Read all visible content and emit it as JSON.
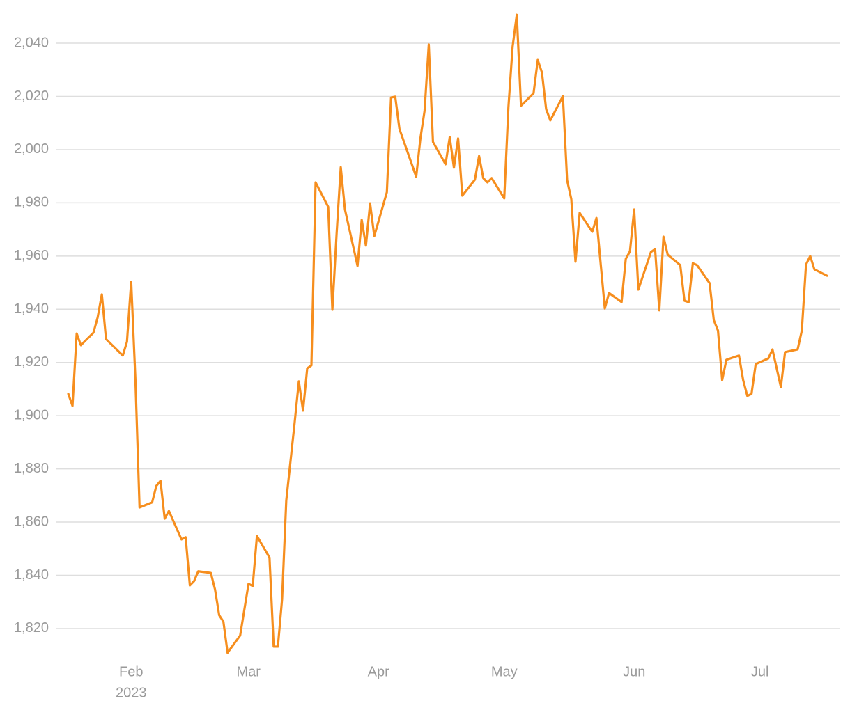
{
  "chart_data": {
    "type": "line",
    "x": [
      "2023-01-17",
      "2023-01-18",
      "2023-01-19",
      "2023-01-20",
      "2023-01-23",
      "2023-01-24",
      "2023-01-25",
      "2023-01-26",
      "2023-01-30",
      "2023-01-31",
      "2023-02-01",
      "2023-02-02",
      "2023-02-03",
      "2023-02-06",
      "2023-02-07",
      "2023-02-08",
      "2023-02-09",
      "2023-02-10",
      "2023-02-13",
      "2023-02-14",
      "2023-02-15",
      "2023-02-16",
      "2023-02-17",
      "2023-02-20",
      "2023-02-21",
      "2023-02-22",
      "2023-02-23",
      "2023-02-24",
      "2023-02-27",
      "2023-03-01",
      "2023-03-02",
      "2023-03-03",
      "2023-03-06",
      "2023-03-07",
      "2023-03-08",
      "2023-03-09",
      "2023-03-10",
      "2023-03-12",
      "2023-03-13",
      "2023-03-14",
      "2023-03-15",
      "2023-03-16",
      "2023-03-17",
      "2023-03-20",
      "2023-03-21",
      "2023-03-22",
      "2023-03-23",
      "2023-03-24",
      "2023-03-27",
      "2023-03-28",
      "2023-03-29",
      "2023-03-30",
      "2023-03-31",
      "2023-04-03",
      "2023-04-04",
      "2023-04-05",
      "2023-04-06",
      "2023-04-10",
      "2023-04-11",
      "2023-04-12",
      "2023-04-13",
      "2023-04-14",
      "2023-04-17",
      "2023-04-18",
      "2023-04-19",
      "2023-04-20",
      "2023-04-21",
      "2023-04-24",
      "2023-04-25",
      "2023-04-26",
      "2023-04-27",
      "2023-04-28",
      "2023-05-01",
      "2023-05-02",
      "2023-05-03",
      "2023-05-04",
      "2023-05-05",
      "2023-05-08",
      "2023-05-09",
      "2023-05-10",
      "2023-05-11",
      "2023-05-12",
      "2023-05-15",
      "2023-05-16",
      "2023-05-17",
      "2023-05-18",
      "2023-05-19",
      "2023-05-22",
      "2023-05-23",
      "2023-05-25",
      "2023-05-26",
      "2023-05-29",
      "2023-05-30",
      "2023-05-31",
      "2023-06-01",
      "2023-06-02",
      "2023-06-05",
      "2023-06-06",
      "2023-06-07",
      "2023-06-08",
      "2023-06-09",
      "2023-06-12",
      "2023-06-13",
      "2023-06-14",
      "2023-06-15",
      "2023-06-16",
      "2023-06-19",
      "2023-06-20",
      "2023-06-21",
      "2023-06-22",
      "2023-06-23",
      "2023-06-26",
      "2023-06-27",
      "2023-06-28",
      "2023-06-29",
      "2023-06-30",
      "2023-07-03",
      "2023-07-04",
      "2023-07-05",
      "2023-07-06",
      "2023-07-07",
      "2023-07-10",
      "2023-07-11",
      "2023-07-12",
      "2023-07-13",
      "2023-07-14",
      "2023-07-17"
    ],
    "series": [
      {
        "color": "#f68e1e",
        "values": [
          1908.2,
          1903.7,
          1930.9,
          1926.5,
          1931.2,
          1936.9,
          1945.6,
          1928.8,
          1922.6,
          1927.8,
          1950.3,
          1914.0,
          1865.5,
          1867.4,
          1873.6,
          1875.5,
          1861.3,
          1864.2,
          1853.5,
          1854.3,
          1836.2,
          1837.8,
          1841.5,
          1840.9,
          1834.7,
          1825.0,
          1822.6,
          1810.9,
          1817.4,
          1836.8,
          1836.0,
          1854.8,
          1846.7,
          1813.2,
          1813.2,
          1831.0,
          1868.1,
          1897.4,
          1912.9,
          1901.9,
          1917.8,
          1918.9,
          1987.7,
          1978.5,
          1939.8,
          1968.1,
          1993.4,
          1977.5,
          1956.3,
          1973.6,
          1963.9,
          1979.8,
          1967.5,
          1984.0,
          2019.6,
          2019.9,
          2007.8,
          1989.8,
          2004.2,
          2014.6,
          2039.5,
          2002.9,
          1994.5,
          2004.7,
          1993.2,
          2004.2,
          1982.7,
          1988.7,
          1997.6,
          1989.3,
          1987.7,
          1989.3,
          1981.7,
          2015.9,
          2038.7,
          2050.7,
          2016.5,
          2021.2,
          2033.7,
          2029.0,
          2015.2,
          2011.0,
          2020.1,
          1988.5,
          1981.4,
          1957.9,
          1976.2,
          1969.1,
          1974.3,
          1940.3,
          1946.1,
          1942.7,
          1958.9,
          1961.8,
          1977.5,
          1947.4,
          1961.5,
          1962.6,
          1939.6,
          1967.3,
          1960.5,
          1956.6,
          1943.2,
          1942.7,
          1957.3,
          1956.6,
          1949.8,
          1935.9,
          1932.0,
          1913.4,
          1921.0,
          1922.6,
          1913.4,
          1907.4,
          1908.2,
          1919.4,
          1921.5,
          1924.9,
          1917.8,
          1910.8,
          1923.9,
          1924.9,
          1932.0,
          1956.8,
          1960.0,
          1955.0,
          1952.6
        ]
      }
    ],
    "xlim": [
      "2023-01-14",
      "2023-07-20"
    ],
    "xticks": [
      {
        "value": "2023-02-01",
        "label": "Feb"
      },
      {
        "value": "2023-03-01",
        "label": "Mar"
      },
      {
        "value": "2023-04-01",
        "label": "Apr"
      },
      {
        "value": "2023-05-01",
        "label": "May"
      },
      {
        "value": "2023-06-01",
        "label": "Jun"
      },
      {
        "value": "2023-07-01",
        "label": "Jul"
      }
    ],
    "xtick_year": "2023",
    "ylim": [
      1809,
      2051
    ],
    "yticks": [
      {
        "value": 1820,
        "label": "1,820"
      },
      {
        "value": 1840,
        "label": "1,840"
      },
      {
        "value": 1860,
        "label": "1,860"
      },
      {
        "value": 1880,
        "label": "1,880"
      },
      {
        "value": 1900,
        "label": "1,900"
      },
      {
        "value": 1920,
        "label": "1,920"
      },
      {
        "value": 1940,
        "label": "1,940"
      },
      {
        "value": 1960,
        "label": "1,960"
      },
      {
        "value": 1980,
        "label": "1,980"
      },
      {
        "value": 2000,
        "label": "2,000"
      },
      {
        "value": 2020,
        "label": "2,020"
      },
      {
        "value": 2040,
        "label": "2,040"
      }
    ],
    "grid": true
  }
}
